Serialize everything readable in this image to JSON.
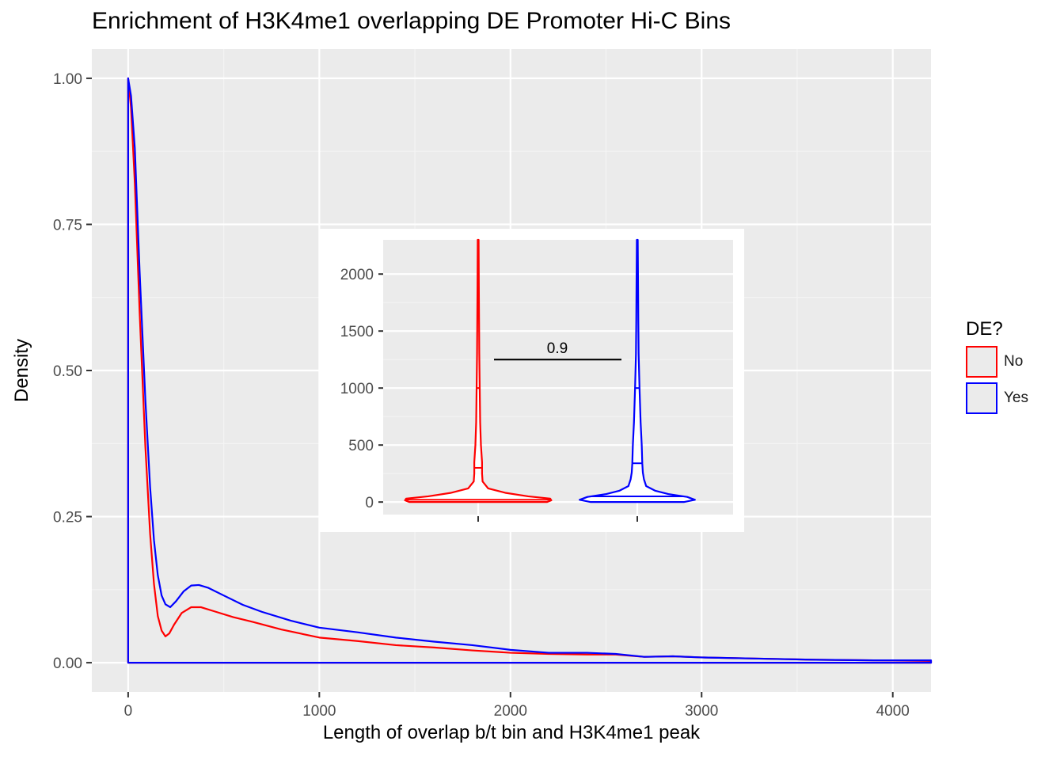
{
  "chart_data": [
    {
      "type": "area",
      "title": "Enrichment of H3K4me1 overlapping DE Promoter Hi-C Bins",
      "xlabel": "Length of overlap b/t bin and H3K4me1 peak",
      "ylabel": "Density",
      "xlim": [
        -190,
        4200
      ],
      "ylim": [
        -0.05,
        1.05
      ],
      "x_ticks": [
        0,
        1000,
        2000,
        3000,
        4000
      ],
      "y_ticks": [
        0.0,
        0.25,
        0.5,
        0.75,
        1.0
      ],
      "x_tick_labels": [
        "0",
        "1000",
        "2000",
        "3000",
        "4000"
      ],
      "y_tick_labels": [
        "0.00",
        "0.25",
        "0.50",
        "0.75",
        "1.00"
      ],
      "grid": true,
      "legend": {
        "title": "DE?",
        "position": "right"
      },
      "series": [
        {
          "name": "No",
          "color": "#ff0000",
          "x": [
            0,
            15,
            35,
            60,
            90,
            115,
            135,
            155,
            175,
            195,
            215,
            240,
            280,
            330,
            380,
            450,
            550,
            650,
            800,
            1000,
            1200,
            1400,
            1600,
            1800,
            2000,
            2200,
            2400,
            2550,
            2700,
            2850,
            3000,
            3300,
            3600,
            3900,
            4200
          ],
          "y": [
            1.0,
            0.95,
            0.82,
            0.6,
            0.37,
            0.22,
            0.135,
            0.08,
            0.055,
            0.045,
            0.05,
            0.065,
            0.085,
            0.095,
            0.095,
            0.088,
            0.078,
            0.07,
            0.057,
            0.043,
            0.037,
            0.03,
            0.026,
            0.021,
            0.017,
            0.015,
            0.014,
            0.014,
            0.01,
            0.011,
            0.009,
            0.007,
            0.005,
            0.004,
            0.003
          ]
        },
        {
          "name": "Yes",
          "color": "#0000ff",
          "x": [
            0,
            15,
            35,
            60,
            90,
            115,
            135,
            155,
            175,
            195,
            220,
            250,
            290,
            330,
            370,
            420,
            500,
            600,
            700,
            850,
            1000,
            1200,
            1400,
            1600,
            1800,
            2000,
            2200,
            2400,
            2550,
            2700,
            2850,
            3000,
            3300,
            3600,
            3900,
            4200
          ],
          "y": [
            1.0,
            0.97,
            0.88,
            0.67,
            0.45,
            0.3,
            0.21,
            0.15,
            0.115,
            0.1,
            0.095,
            0.105,
            0.122,
            0.132,
            0.133,
            0.128,
            0.115,
            0.099,
            0.087,
            0.072,
            0.06,
            0.052,
            0.043,
            0.036,
            0.03,
            0.022,
            0.017,
            0.017,
            0.015,
            0.01,
            0.011,
            0.009,
            0.007,
            0.005,
            0.004,
            0.004
          ]
        }
      ]
    },
    {
      "type": "violin",
      "inset": true,
      "categories": [
        "No",
        "Yes"
      ],
      "ylim": [
        -110,
        2300
      ],
      "y_ticks": [
        0,
        500,
        1000,
        1500,
        2000
      ],
      "y_tick_labels": [
        "0",
        "500",
        "1000",
        "1500",
        "2000"
      ],
      "grid": true,
      "annotation": {
        "text": "0.9",
        "y": 1250
      },
      "violins": [
        {
          "name": "No",
          "color": "#ff0000",
          "quantiles": [
            20,
            300,
            1000
          ],
          "profile": [
            [
              0,
              0.62
            ],
            [
              15,
              0.66
            ],
            [
              30,
              0.65
            ],
            [
              50,
              0.45
            ],
            [
              80,
              0.25
            ],
            [
              120,
              0.09
            ],
            [
              180,
              0.04
            ],
            [
              250,
              0.035
            ],
            [
              350,
              0.035
            ],
            [
              500,
              0.025
            ],
            [
              700,
              0.018
            ],
            [
              1000,
              0.014
            ],
            [
              1300,
              0.01
            ],
            [
              1600,
              0.008
            ],
            [
              1900,
              0.006
            ],
            [
              2300,
              0.004
            ]
          ]
        },
        {
          "name": "Yes",
          "color": "#0000ff",
          "quantiles": [
            50,
            340,
            1000
          ],
          "profile": [
            [
              0,
              0.42
            ],
            [
              20,
              0.52
            ],
            [
              45,
              0.45
            ],
            [
              70,
              0.28
            ],
            [
              100,
              0.16
            ],
            [
              140,
              0.08
            ],
            [
              200,
              0.06
            ],
            [
              260,
              0.05
            ],
            [
              340,
              0.045
            ],
            [
              500,
              0.04
            ],
            [
              700,
              0.03
            ],
            [
              1000,
              0.02
            ],
            [
              1300,
              0.012
            ],
            [
              1600,
              0.009
            ],
            [
              1900,
              0.007
            ],
            [
              2300,
              0.004
            ]
          ]
        }
      ]
    }
  ]
}
